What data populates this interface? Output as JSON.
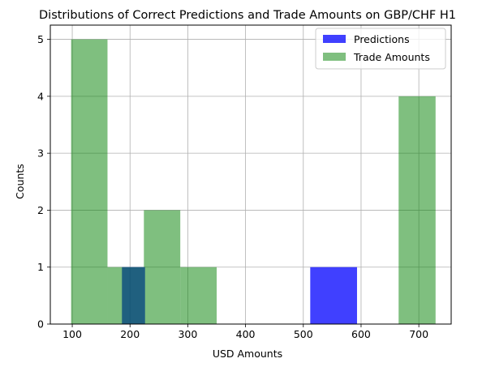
{
  "chart_data": {
    "type": "histogram",
    "title": "Distributions of Correct Predictions and Trade Amounts on GBP/CHF H1",
    "xlabel": "USD Amounts",
    "ylabel": "Counts",
    "xlim": [
      62,
      756
    ],
    "ylim": [
      0,
      5.25
    ],
    "xticks": [
      100,
      200,
      300,
      400,
      500,
      600,
      700
    ],
    "yticks": [
      0,
      1,
      2,
      3,
      4,
      5
    ],
    "grid": true,
    "legend_position": "top-right",
    "series": [
      {
        "name": "Predictions",
        "color": "#0000ff",
        "opacity": 0.75,
        "bins": [
          {
            "x0": 186,
            "x1": 226,
            "count": 1
          },
          {
            "x0": 512,
            "x1": 593,
            "count": 1
          }
        ]
      },
      {
        "name": "Trade Amounts",
        "color": "#008000",
        "opacity": 0.5,
        "bins": [
          {
            "x0": 98,
            "x1": 161,
            "count": 5
          },
          {
            "x0": 161,
            "x1": 224,
            "count": 1
          },
          {
            "x0": 224,
            "x1": 287,
            "count": 2
          },
          {
            "x0": 287,
            "x1": 350,
            "count": 1
          },
          {
            "x0": 665,
            "x1": 729,
            "count": 4
          }
        ]
      }
    ]
  }
}
